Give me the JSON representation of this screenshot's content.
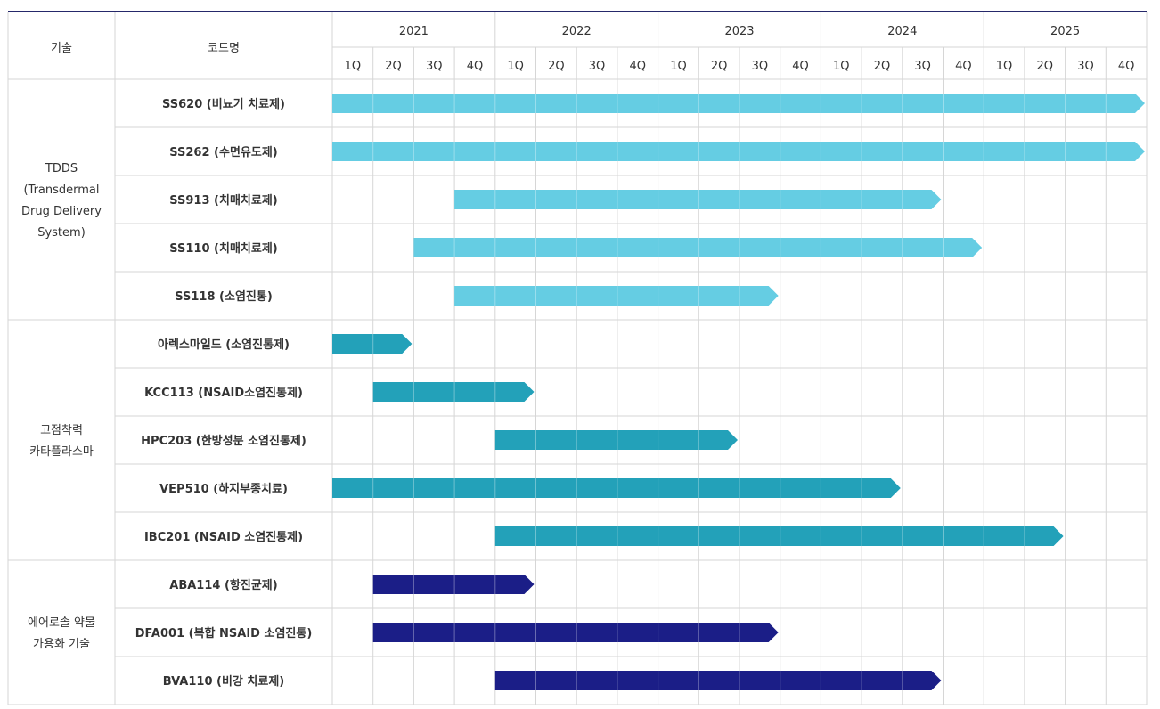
{
  "chart_data": {
    "type": "gantt",
    "headers": {
      "technology": "기술",
      "code": "코드명"
    },
    "years": [
      "2021",
      "2022",
      "2023",
      "2024",
      "2025"
    ],
    "quarters": [
      "1Q",
      "2Q",
      "3Q",
      "4Q"
    ],
    "colors": {
      "TDDS": "#65cde3",
      "CPS": "#23a1b9",
      "AEROSOL": "#1b1e87",
      "header_line": "#25286a",
      "grid": "#d6d6d6"
    },
    "groups": [
      {
        "key": "TDDS",
        "label_lines": [
          "TDDS",
          "(Transdermal",
          "Drug Delivery",
          "System)"
        ],
        "rows": [
          {
            "code": "SS620 (비뇨기 치료제)",
            "start": "2021 1Q",
            "end": "2025 4Q",
            "continues": true
          },
          {
            "code": "SS262 (수면유도제)",
            "start": "2021 1Q",
            "end": "2025 4Q",
            "continues": true
          },
          {
            "code": "SS913 (치매치료제)",
            "start": "2021 4Q",
            "end": "2024 3Q"
          },
          {
            "code": "SS110 (치매치료제)",
            "start": "2021 3Q",
            "end": "2024 4Q"
          },
          {
            "code": "SS118 (소염진통)",
            "start": "2021 4Q",
            "end": "2023 3Q"
          }
        ]
      },
      {
        "key": "CPS",
        "label_lines": [
          "고점착력",
          "카타플라스마"
        ],
        "rows": [
          {
            "code": "아렉스마일드 (소염진통제)",
            "start": "2021 1Q",
            "end": "2021 2Q"
          },
          {
            "code": "KCC113 (NSAID소염진통제)",
            "start": "2021 2Q",
            "end": "2022 1Q"
          },
          {
            "code": "HPC203 (한방성분 소염진통제)",
            "start": "2022 1Q",
            "end": "2023 2Q"
          },
          {
            "code": "VEP510 (하지부종치료)",
            "start": "2021 1Q",
            "end": "2024 2Q"
          },
          {
            "code": "IBC201 (NSAID 소염진통제)",
            "start": "2022 1Q",
            "end": "2025 2Q"
          }
        ]
      },
      {
        "key": "AEROSOL",
        "label_lines": [
          "에어로솔 약물",
          "가용화 기술"
        ],
        "rows": [
          {
            "code": "ABA114 (항진균제)",
            "start": "2021 2Q",
            "end": "2022 1Q"
          },
          {
            "code": "DFA001 (복합 NSAID 소염진통)",
            "start": "2021 2Q",
            "end": "2023 3Q"
          },
          {
            "code": "BVA110 (비강 치료제)",
            "start": "2022 1Q",
            "end": "2024 3Q"
          }
        ]
      }
    ]
  }
}
